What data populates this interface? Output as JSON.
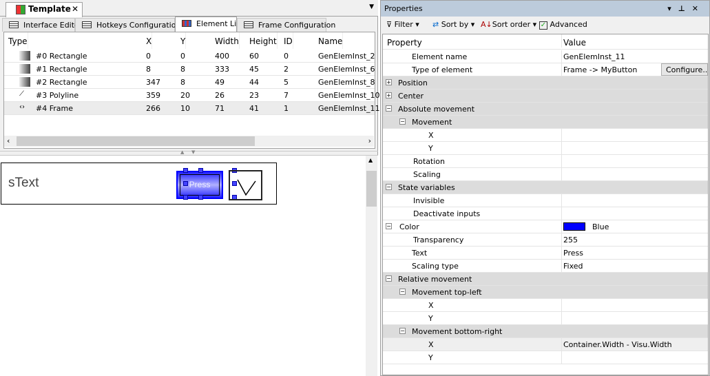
{
  "document_tab": {
    "title": "Template",
    "close": "✕",
    "menu": "▼"
  },
  "subtabs": [
    {
      "label": "Interface Editor"
    },
    {
      "label": "Hotkeys Configuration"
    },
    {
      "label": "Element List",
      "active": true
    },
    {
      "label": "Frame Configuration"
    }
  ],
  "element_list": {
    "columns": [
      "Type",
      "X",
      "Y",
      "Width",
      "Height",
      "ID",
      "Name"
    ],
    "rows": [
      {
        "type": "#0 Rectangle",
        "icon": "rectangle-icon",
        "x": "0",
        "y": "0",
        "width": "400",
        "height": "60",
        "id": "0",
        "name": "GenElemInst_2"
      },
      {
        "type": "#1 Rectangle",
        "icon": "rectangle-icon",
        "x": "8",
        "y": "8",
        "width": "333",
        "height": "45",
        "id": "2",
        "name": "GenElemInst_6"
      },
      {
        "type": "#2 Rectangle",
        "icon": "rectangle-icon",
        "x": "347",
        "y": "8",
        "width": "49",
        "height": "44",
        "id": "5",
        "name": "GenElemInst_8"
      },
      {
        "type": "#3 Polyline",
        "icon": "polyline-icon",
        "x": "359",
        "y": "20",
        "width": "26",
        "height": "23",
        "id": "7",
        "name": "GenElemInst_10"
      },
      {
        "type": "#4 Frame",
        "icon": "frame-icon",
        "x": "266",
        "y": "10",
        "width": "71",
        "height": "41",
        "id": "1",
        "name": "GenElemInst_11",
        "selected": true
      }
    ]
  },
  "canvas": {
    "text_label": "sText",
    "button_label": "Press",
    "button_color": "#0000ff"
  },
  "properties": {
    "title": "Properties",
    "toolbar": {
      "filter": "Filter",
      "sort_by": "Sort by",
      "sort_order": "Sort order",
      "advanced": "Advanced",
      "advanced_checked": true
    },
    "columns": {
      "property": "Property",
      "value": "Value"
    },
    "configure_button": "Configure...",
    "rows": [
      {
        "name": "Element name",
        "level": 1,
        "value": "GenElemInst_11"
      },
      {
        "name": "Type of element",
        "level": 1,
        "value": "Frame -> MyButton",
        "button": true
      },
      {
        "name": "Position",
        "level": 0,
        "group": true,
        "expander": "+"
      },
      {
        "name": "Center",
        "level": 0,
        "group": true,
        "expander": "+"
      },
      {
        "name": "Absolute movement",
        "level": 0,
        "group": true,
        "expander": "−"
      },
      {
        "name": "Movement",
        "level": 1,
        "group": true,
        "expander": "−"
      },
      {
        "name": "X",
        "level": 3,
        "value": ""
      },
      {
        "name": "Y",
        "level": 3,
        "value": ""
      },
      {
        "name": "Rotation",
        "level": 2,
        "value": ""
      },
      {
        "name": "Scaling",
        "level": 2,
        "value": ""
      },
      {
        "name": "State variables",
        "level": 0,
        "group": true,
        "expander": "−"
      },
      {
        "name": "Invisible",
        "level": 2,
        "value": ""
      },
      {
        "name": "Deactivate inputs",
        "level": 2,
        "value": ""
      },
      {
        "name": "Color",
        "level": 1,
        "value": "Blue",
        "expander": "−",
        "swatch": "#0000ff"
      },
      {
        "name": "Transparency",
        "level": 2,
        "value": "255"
      },
      {
        "name": "Text",
        "level": 1,
        "value": "Press"
      },
      {
        "name": "Scaling type",
        "level": 1,
        "value": "Fixed"
      },
      {
        "name": "Relative movement",
        "level": 0,
        "group": true,
        "expander": "−"
      },
      {
        "name": "Movement top-left",
        "level": 1,
        "group": true,
        "expander": "−"
      },
      {
        "name": "X",
        "level": 3,
        "value": ""
      },
      {
        "name": "Y",
        "level": 3,
        "value": ""
      },
      {
        "name": "Movement bottom-right",
        "level": 1,
        "group": true,
        "expander": "−"
      },
      {
        "name": "X",
        "level": 3,
        "value": "Container.Width - Visu.Width",
        "selected": true
      },
      {
        "name": "Y",
        "level": 3,
        "value": ""
      }
    ]
  }
}
